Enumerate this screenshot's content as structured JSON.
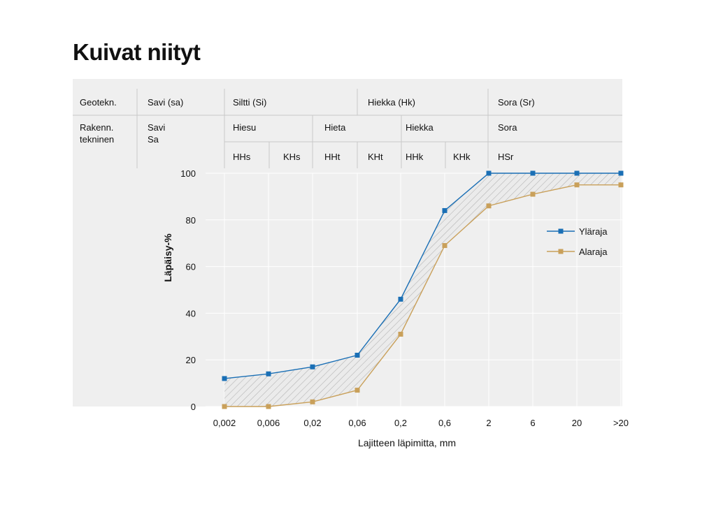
{
  "title": "Kuivat niityt",
  "classification": {
    "geotech_label": "Geotekn.",
    "geotech_groups": [
      "Savi (sa)",
      "Siltti (Si)",
      "Hiekka (Hk)",
      "Sora (Sr)"
    ],
    "rak_label": "Rakenn.\ntekninen",
    "rak_groups": [
      "Savi\nSa",
      "Hiesu",
      "Hieta",
      "Hiekka",
      "Sora"
    ],
    "sub_groups": [
      "HHs",
      "KHs",
      "HHt",
      "KHt",
      "HHk",
      "KHk",
      "HSr"
    ]
  },
  "chart_data": {
    "type": "line",
    "title": "Kuivat niityt",
    "xlabel": "Lajitteen läpimitta, mm",
    "ylabel": "Läpäisy-%",
    "categories": [
      "0,002",
      "0,006",
      "0,02",
      "0,06",
      "0,2",
      "0,6",
      "2",
      "6",
      "20",
      ">20"
    ],
    "ylim": [
      0,
      100
    ],
    "yticks": [
      0,
      20,
      40,
      60,
      80,
      100
    ],
    "grid": true,
    "legend_position": "right",
    "band_between_series": true,
    "series": [
      {
        "name": "Yläraja",
        "color": "#1a6fb5",
        "values": [
          12,
          14,
          17,
          22,
          46,
          84,
          100,
          100,
          100,
          100
        ]
      },
      {
        "name": "Alaraja",
        "color": "#c9a05a",
        "values": [
          0,
          0,
          2,
          7,
          31,
          69,
          86,
          91,
          95,
          95
        ]
      }
    ]
  }
}
